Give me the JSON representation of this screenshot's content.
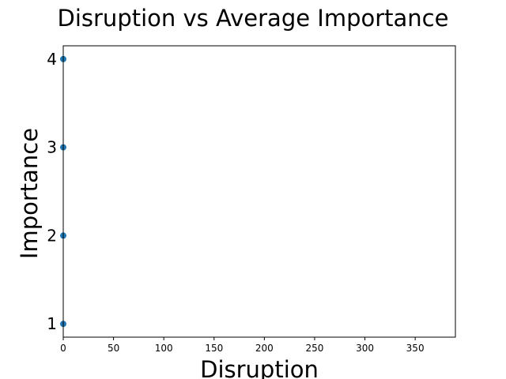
{
  "chart_data": {
    "type": "scatter",
    "title": "Disruption vs Average Importance",
    "xlabel": "Disruption",
    "ylabel": "Importance",
    "xlim": [
      0,
      390
    ],
    "ylim": [
      0.85,
      4.15
    ],
    "xticks": [
      0,
      50,
      100,
      150,
      200,
      250,
      300,
      350
    ],
    "yticks": [
      1,
      2,
      3,
      4
    ],
    "grid": false,
    "legend": "none",
    "points": [
      {
        "x": 0,
        "y": 4
      },
      {
        "x": 0,
        "y": 3
      },
      {
        "x": 0,
        "y": 2
      },
      {
        "x": 0,
        "y": 1
      }
    ],
    "colors": {
      "marker": "#1f77b4",
      "axes": "#000000"
    }
  }
}
